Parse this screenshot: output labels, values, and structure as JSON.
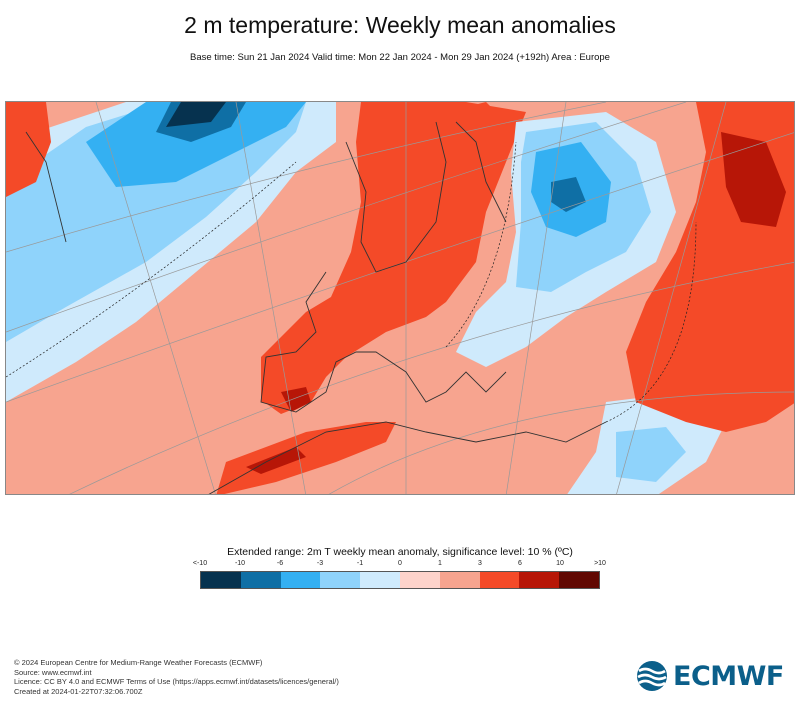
{
  "header": {
    "title": "2 m temperature: Weekly mean anomalies",
    "subtitle": "Base time: Sun 21 Jan 2024 Valid time: Mon 22 Jan 2024 - Mon 29 Jan 2024 (+192h) Area : Europe"
  },
  "map": {
    "area": "Europe",
    "projection_graticule": true,
    "coastlines": true,
    "country_borders": true,
    "significance_contours": "dashed"
  },
  "legend": {
    "title": "Extended range: 2m T weekly mean anomaly, significance level: 10 % (ºC)",
    "ticks": [
      "<-10",
      "-10",
      "-6",
      "-3",
      "-1",
      "0",
      "1",
      "3",
      "6",
      "10",
      ">10"
    ],
    "colors": [
      "#06324f",
      "#0f6fa5",
      "#34b0f2",
      "#8fd3fb",
      "#cfeafc",
      "#fdd3cb",
      "#f7a48f",
      "#f44a28",
      "#b71607",
      "#610802"
    ]
  },
  "footer": {
    "line1": "© 2024 European Centre for Medium-Range Weather Forecasts (ECMWF)",
    "line2": "Source: www.ecmwf.int",
    "line3": "Licence: CC BY 4.0 and ECMWF Terms of Use (https://apps.ecmwf.int/datasets/licences/general/)",
    "line4": "Created at 2024-01-22T07:32:06.700Z"
  },
  "logo": {
    "text": "ECMWF",
    "icon": "ecmwf-logo-icon",
    "color": "#0b5f8a"
  }
}
